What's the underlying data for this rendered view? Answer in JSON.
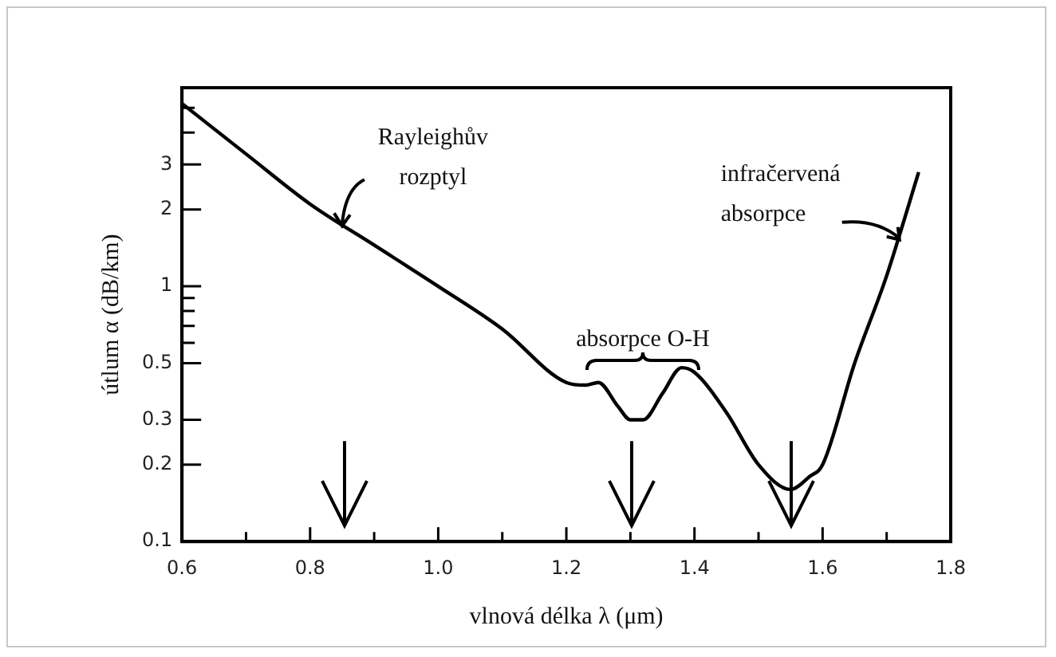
{
  "chart_data": {
    "type": "line",
    "xlabel": "vlnová délka λ (μm)",
    "ylabel": "útlum α (dB/km)",
    "x": [
      0.6,
      0.7,
      0.8,
      0.9,
      1.0,
      1.1,
      1.2,
      1.23,
      1.25,
      1.28,
      1.3,
      1.32,
      1.35,
      1.38,
      1.4,
      1.45,
      1.5,
      1.55,
      1.58,
      1.6,
      1.65,
      1.7,
      1.75
    ],
    "series": [
      {
        "color": "#000000",
        "values": [
          5.2,
          3.3,
          2.1,
          1.45,
          1.0,
          0.68,
          0.42,
          0.41,
          0.42,
          0.34,
          0.3,
          0.3,
          0.38,
          0.48,
          0.46,
          0.32,
          0.2,
          0.16,
          0.18,
          0.2,
          0.5,
          1.1,
          2.8
        ]
      }
    ],
    "xlim": [
      0.6,
      1.8
    ],
    "xticks": [
      0.6,
      {
        "value": 0.7,
        "label": null
      },
      0.8,
      {
        "value": 0.9,
        "label": null
      },
      {
        "value": 1.0,
        "label": "1.0"
      },
      {
        "value": 1.1,
        "label": null
      },
      1.2,
      {
        "value": 1.3,
        "label": null
      },
      1.4,
      {
        "value": 1.5,
        "label": null
      },
      1.6,
      {
        "value": 1.7,
        "label": null
      },
      1.8
    ],
    "log": "y",
    "ylim": [
      0.1,
      6
    ],
    "yticks": [
      0.1,
      0.2,
      0.3,
      0.5,
      {
        "value": 0.6,
        "label": null
      },
      {
        "value": 0.7,
        "label": null
      },
      {
        "value": 0.8,
        "label": null
      },
      {
        "value": 0.9,
        "label": null
      },
      1,
      2,
      3,
      {
        "value": 4,
        "label": null
      },
      {
        "value": 5,
        "label": null
      }
    ],
    "annotations": [
      {
        "text": "Rayleighův\nrozptyl",
        "x": 0.85,
        "y": 1.7
      },
      "absorpce O-H",
      {
        "text": "infračervená\nabsorpce",
        "x": 1.72,
        "y": 1.5
      }
    ],
    "marker": "none",
    "line_style": "solid",
    "grid": false,
    "legend": false
  }
}
